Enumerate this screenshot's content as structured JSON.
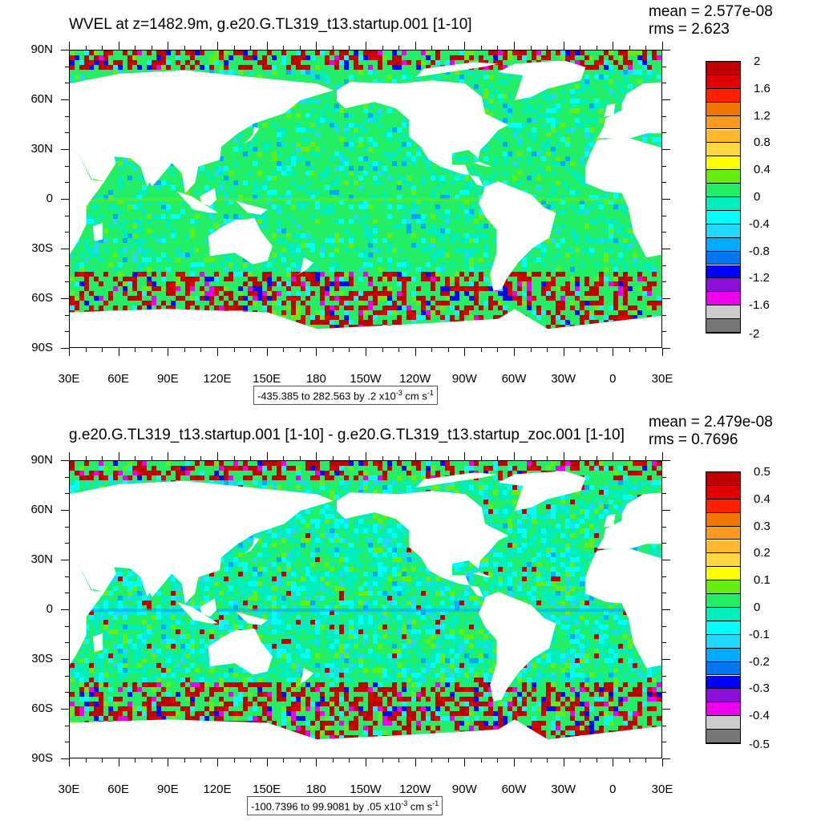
{
  "lat_labels": [
    "90N",
    "60N",
    "30N",
    "0",
    "30S",
    "60S",
    "90S"
  ],
  "lon_labels": [
    "30E",
    "60E",
    "90E",
    "120E",
    "150E",
    "180",
    "150W",
    "120W",
    "90W",
    "60W",
    "30W",
    "0",
    "30E"
  ],
  "colors_common": {
    "land": "#ffffff",
    "ocean_base": "#22ee66"
  },
  "panels": [
    {
      "id": "top",
      "title": "WVEL at z=1482.9m, g.e20.G.TL319_t13.startup.001 [1-10]",
      "mean_text": "mean = 2.577e-08",
      "rms_text": "rms = 2.623",
      "range_prefix": "-435.385 to 282.563 by .2 x10",
      "range_exp": "-3",
      "range_unit": " cm s",
      "range_unit_exp": "-1",
      "colorbar_labels": [
        "2",
        "1.6",
        "1.2",
        "0.8",
        "0.4",
        "0",
        "-0.4",
        "-0.8",
        "-1.2",
        "-1.6",
        "-2"
      ],
      "noise_level": 0.35
    },
    {
      "id": "bottom",
      "title": "g.e20.G.TL319_t13.startup.001 [1-10] - g.e20.G.TL319_t13.startup_zoc.001 [1-10]",
      "mean_text": "mean = 2.479e-08",
      "rms_text": "rms = 0.7696",
      "range_prefix": "-100.7396 to 99.9081 by .05 x10",
      "range_exp": "-3",
      "range_unit": " cm s",
      "range_unit_exp": "-1",
      "colorbar_labels": [
        "0.5",
        "0.4",
        "0.3",
        "0.2",
        "0.1",
        "0",
        "-0.1",
        "-0.2",
        "-0.3",
        "-0.4",
        "-0.5"
      ],
      "noise_level": 0.65
    }
  ],
  "colorbar_colors": [
    "#c00000",
    "#e00000",
    "#ff2000",
    "#f07800",
    "#ff9a20",
    "#ffb830",
    "#ffd840",
    "#ffff00",
    "#66ee10",
    "#22ee66",
    "#00eebb",
    "#00ffff",
    "#22d8ff",
    "#00aaff",
    "#0077ee",
    "#0000ff",
    "#8a10d8",
    "#ee00ee",
    "#cccccc",
    "#777777"
  ]
}
